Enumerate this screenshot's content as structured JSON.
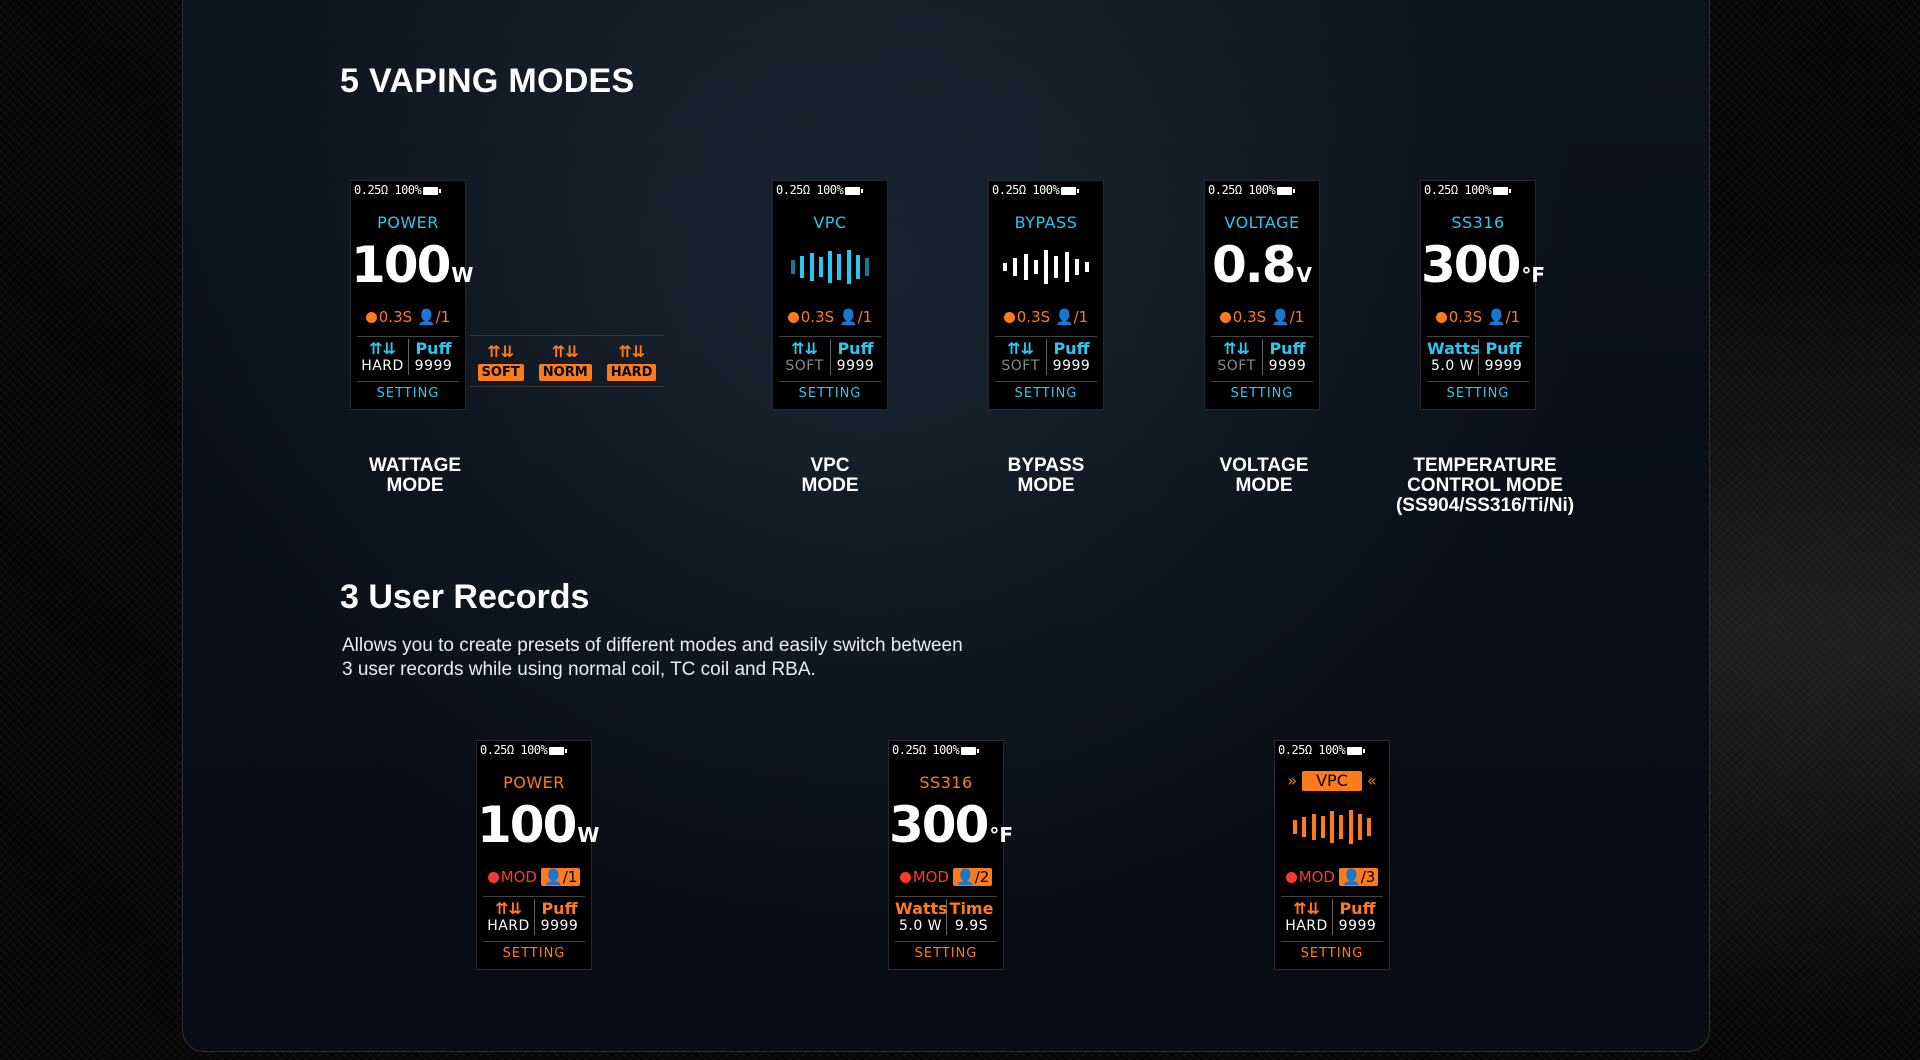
{
  "section1": {
    "title": "5 VAPING MODES",
    "status": {
      "res": "0.25Ω",
      "battery": "100%"
    },
    "screens": [
      {
        "mode": "POWER",
        "value": "100",
        "unit": "W",
        "info_time": "0.3S",
        "info_user": "/1",
        "left_top": "⇈⇊",
        "left_bot": "HARD",
        "right_top": "Puff",
        "right_bot": "9999",
        "setting": "SETTING"
      },
      {
        "mode": "VPC",
        "info_time": "0.3S",
        "info_user": "/1",
        "left_top": "⇈⇊",
        "left_bot": "SOFT",
        "right_top": "Puff",
        "right_bot": "9999",
        "setting": "SETTING"
      },
      {
        "mode": "BYPASS",
        "info_time": "0.3S",
        "info_user": "/1",
        "left_top": "⇈⇊",
        "left_bot": "SOFT",
        "right_top": "Puff",
        "right_bot": "9999",
        "setting": "SETTING"
      },
      {
        "mode": "VOLTAGE",
        "value": "0.8",
        "unit": "V",
        "info_time": "0.3S",
        "info_user": "/1",
        "left_top": "⇈⇊",
        "left_bot": "SOFT",
        "right_top": "Puff",
        "right_bot": "9999",
        "setting": "SETTING"
      },
      {
        "mode": "SS316",
        "value": "300",
        "unit": "°F",
        "info_time": "0.3S",
        "info_user": "/1",
        "left_top": "Watts",
        "left_bot": "5.0 W",
        "right_top": "Puff",
        "right_bot": "9999",
        "setting": "SETTING"
      }
    ],
    "hardness": [
      "SOFT",
      "NORM",
      "HARD"
    ],
    "hardness_arrow": "⇈⇊",
    "captions": [
      [
        "WATTAGE",
        "MODE"
      ],
      [
        "VPC",
        "MODE"
      ],
      [
        "BYPASS",
        "MODE"
      ],
      [
        "VOLTAGE",
        "MODE"
      ],
      [
        "TEMPERATURE",
        "CONTROL MODE",
        "(SS904/SS316/Ti/Ni)"
      ]
    ]
  },
  "section2": {
    "title": "3 User Records",
    "description": [
      "Allows you to create presets of different modes and easily switch between",
      "3 user records while using normal coil, TC coil and RBA."
    ],
    "screens": [
      {
        "mode": "POWER",
        "value": "100",
        "unit": "W",
        "mod": "MOD",
        "user": "/1",
        "left_top": "⇈⇊",
        "left_bot": "HARD",
        "right_top": "Puff",
        "right_bot": "9999",
        "setting": "SETTING"
      },
      {
        "mode": "SS316",
        "value": "300",
        "unit": "°F",
        "mod": "MOD",
        "user": "/2",
        "left_top": "Watts",
        "left_bot": "5.0 W",
        "right_top": "Time",
        "right_bot": "9.9S",
        "setting": "SETTING"
      },
      {
        "mode": "VPC",
        "mod": "MOD",
        "user": "/3",
        "left_top": "⇈⇊",
        "left_bot": "HARD",
        "right_top": "Puff",
        "right_bot": "9999",
        "setting": "SETTING",
        "chevrons": "»",
        "chevrons_r": "«"
      }
    ]
  },
  "colors": {
    "cyan": "#29c6f0",
    "orange": "#ff7a1a",
    "red": "#ff3a2a"
  }
}
